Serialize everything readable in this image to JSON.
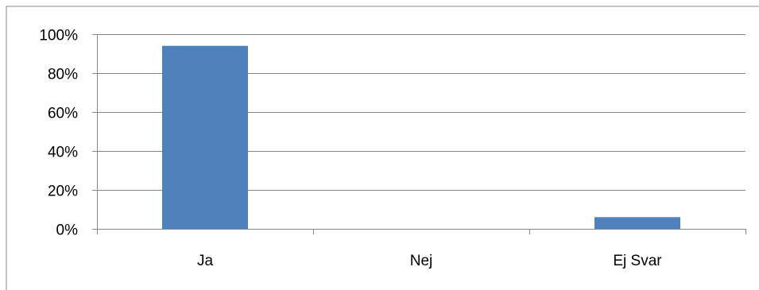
{
  "chart_data": {
    "type": "bar",
    "categories": [
      "Ja",
      "Nej",
      "Ej Svar"
    ],
    "values": [
      94,
      0,
      6
    ],
    "ylim": [
      0,
      100
    ],
    "y_ticks": [
      0,
      20,
      40,
      60,
      80,
      100
    ],
    "y_tick_labels": [
      "0%",
      "20%",
      "40%",
      "60%",
      "80%",
      "100%"
    ],
    "title": "",
    "xlabel": "",
    "ylabel": "",
    "grid": true,
    "legend": "none",
    "colors": {
      "bar": "#4f81bd",
      "grid": "#868686",
      "axis": "#868686",
      "frame": "#868686",
      "text": "#000000"
    }
  }
}
